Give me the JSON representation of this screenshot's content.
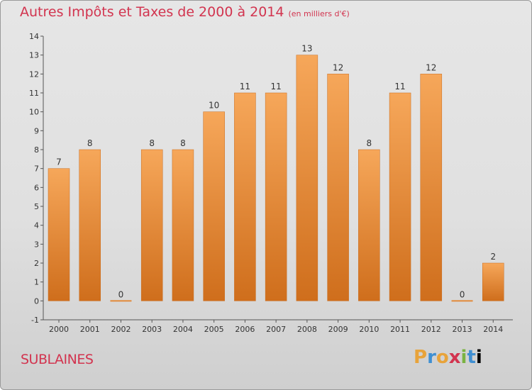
{
  "header": {
    "title": "Autres Impôts et Taxes de 2000 à 2014",
    "unit": "(en milliers d'€)"
  },
  "footer": {
    "commune": "SUBLAINES",
    "logo": "Proxiti"
  },
  "colors": {
    "title": "#d2344f",
    "bar_top": "#f6a75a",
    "bar_bottom": "#cf6e1c",
    "axis": "#555555"
  },
  "chart_data": {
    "type": "bar",
    "categories": [
      "2000",
      "2001",
      "2002",
      "2003",
      "2004",
      "2005",
      "2006",
      "2007",
      "2008",
      "2009",
      "2010",
      "2011",
      "2012",
      "2013",
      "2014"
    ],
    "values": [
      7,
      8,
      0,
      8,
      8,
      10,
      11,
      11,
      13,
      12,
      8,
      11,
      12,
      0,
      2
    ],
    "title": "Autres Impôts et Taxes de 2000 à 2014",
    "ylim": [
      -1,
      14
    ],
    "yticks": [
      -1,
      0,
      1,
      2,
      3,
      4,
      5,
      6,
      7,
      8,
      9,
      10,
      11,
      12,
      13,
      14
    ],
    "grid": false,
    "data_labels": true
  }
}
